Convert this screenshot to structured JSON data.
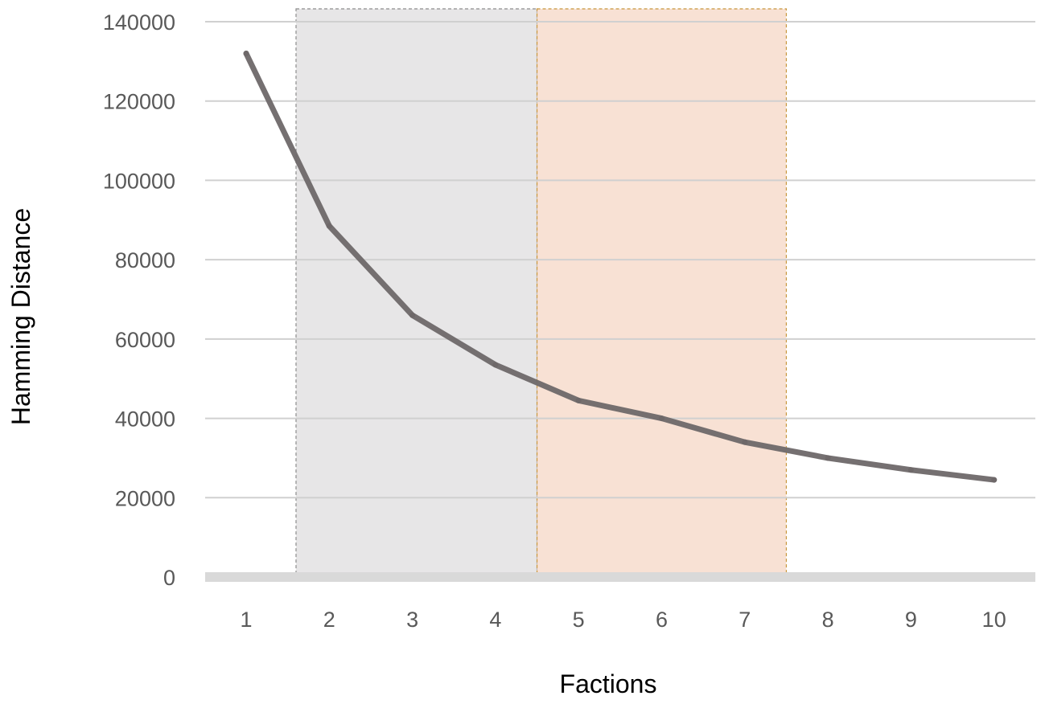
{
  "chart_data": {
    "type": "line",
    "title": "",
    "xlabel": "Factions",
    "ylabel": "Hamming Distance",
    "x": [
      1,
      2,
      3,
      4,
      5,
      6,
      7,
      8,
      9,
      10
    ],
    "series": [
      {
        "values": [
          132000,
          88500,
          66000,
          53500,
          44500,
          40000,
          34000,
          30000,
          27000,
          24500
        ]
      }
    ],
    "ylim": [
      0,
      140000
    ],
    "yticks": [
      0,
      20000,
      40000,
      60000,
      80000,
      100000,
      120000,
      140000
    ],
    "xtick_labels": [
      "1",
      "2",
      "3",
      "4",
      "5",
      "6",
      "7",
      "8",
      "9",
      "10"
    ],
    "ytick_labels": [
      "0",
      "20000",
      "40000",
      "60000",
      "80000",
      "100000",
      "120000",
      "140000"
    ],
    "grid": "horizontal",
    "legend": "none",
    "highlight_regions": [
      {
        "x_from": 1.6,
        "x_to": 4.5,
        "color": "#e7e6e7",
        "border_color": "#8c8c8c"
      },
      {
        "x_from": 4.5,
        "x_to": 7.5,
        "color": "#f8e1d4",
        "border_color": "#c8963c"
      }
    ],
    "colors": {
      "line": "#6e6869",
      "grid": "#d0d0d0",
      "baseline": "#d9d9d9",
      "tick_text": "#595959",
      "axis_title_text": "#000000"
    }
  }
}
